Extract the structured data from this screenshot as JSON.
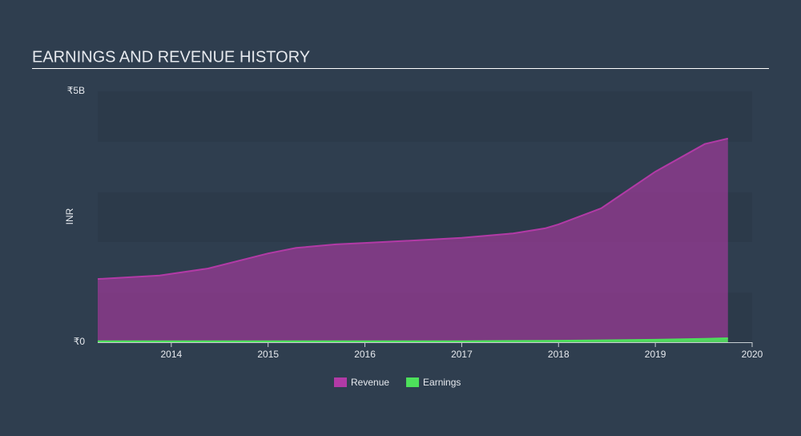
{
  "chart_data": {
    "type": "area",
    "title": "EARNINGS AND REVENUE HISTORY",
    "y_label": "INR",
    "x": [
      2013.24,
      2013.88,
      2014.38,
      2015.0,
      2015.29,
      2015.7,
      2016.0,
      2016.53,
      2017.0,
      2017.53,
      2017.86,
      2018.0,
      2018.44,
      2019.0,
      2019.51,
      2019.75
    ],
    "series": [
      {
        "name": "Revenue",
        "color": "#b23aa6",
        "values": [
          1260000000,
          1330000000,
          1470000000,
          1770000000,
          1880000000,
          1950000000,
          1980000000,
          2030000000,
          2080000000,
          2170000000,
          2270000000,
          2350000000,
          2670000000,
          3400000000,
          3950000000,
          4060000000
        ]
      },
      {
        "name": "Earnings",
        "color": "#4de15b",
        "values": [
          20000000,
          20000000,
          20000000,
          20000000,
          20000000,
          20000000,
          20000000,
          20000000,
          20000000,
          25000000,
          28000000,
          30000000,
          38000000,
          50000000,
          68000000,
          80000000
        ]
      }
    ],
    "xlim": [
      2013.24,
      2020
    ],
    "xticks": [
      2014,
      2015,
      2016,
      2017,
      2018,
      2019,
      2020
    ],
    "ylim": [
      0,
      5000000000
    ],
    "yticks": [
      {
        "value": 0,
        "label": "₹0"
      },
      {
        "value": 5000000000,
        "label": "₹5B"
      }
    ],
    "legend": "bottom"
  }
}
